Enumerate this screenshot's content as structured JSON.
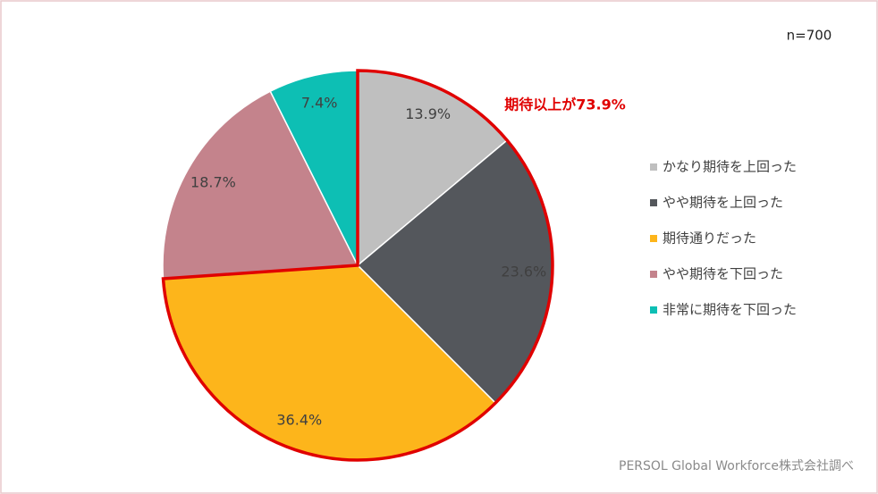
{
  "chart_data": {
    "type": "pie",
    "note": "n=700",
    "annotation": "期待以上が73.9%",
    "source": "PERSOL Global Workforce株式会社調べ",
    "categories": [
      "かなり期待を上回った",
      "やや期待を上回った",
      "期待通りだった",
      "やや期待を下回った",
      "非常に期待を下回った"
    ],
    "values": [
      13.9,
      23.6,
      36.4,
      18.7,
      7.4
    ],
    "value_labels": [
      "13.9%",
      "23.6%",
      "36.4%",
      "18.7%",
      "7.4%"
    ],
    "colors": [
      "#bfbfbf",
      "#54575c",
      "#fdb51b",
      "#c4838c",
      "#0dbfb4"
    ]
  }
}
